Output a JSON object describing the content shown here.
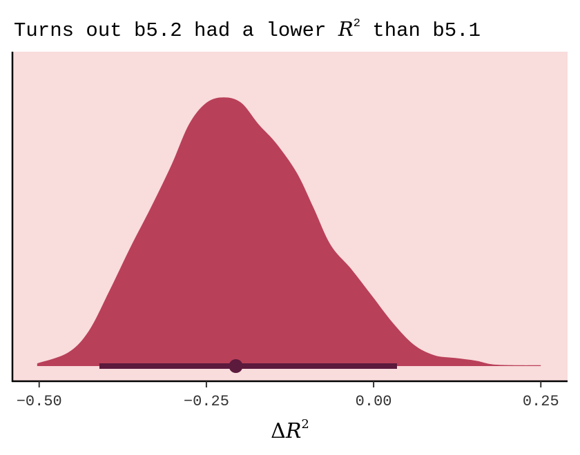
{
  "chart_data": {
    "type": "area",
    "title_parts": {
      "before": "Turns out b5.2 had a lower ",
      "math": "R",
      "sup": "2",
      "after": " than b5.1"
    },
    "xlabel": {
      "delta": "Δ",
      "math": "R",
      "sup": "2"
    },
    "ylabel": "",
    "xlim": [
      -0.54,
      0.29
    ],
    "ylim": [
      0,
      1.17
    ],
    "x_ticks": [
      -0.5,
      -0.25,
      0.0,
      0.25
    ],
    "x_tick_labels": [
      "−0.50",
      "−0.25",
      "0.00",
      "0.25"
    ],
    "y_axis_ticks": false,
    "grid": false,
    "density": {
      "x": [
        -0.503,
        -0.457,
        -0.426,
        -0.395,
        -0.364,
        -0.333,
        -0.302,
        -0.276,
        -0.25,
        -0.224,
        -0.198,
        -0.172,
        -0.146,
        -0.115,
        -0.09,
        -0.064,
        -0.033,
        -0.002,
        0.029,
        0.06,
        0.091,
        0.122,
        0.153,
        0.184,
        0.25
      ],
      "y": [
        0.01,
        0.05,
        0.13,
        0.28,
        0.44,
        0.59,
        0.75,
        0.9,
        0.98,
        1.0,
        0.98,
        0.9,
        0.83,
        0.72,
        0.59,
        0.45,
        0.36,
        0.26,
        0.16,
        0.08,
        0.04,
        0.03,
        0.02,
        0.005,
        0.003
      ]
    },
    "point_interval": {
      "point": -0.206,
      "lower": -0.41,
      "upper": 0.035
    },
    "colors": {
      "panel": "#f9dcdc",
      "density": "#b94059",
      "interval": "#5c1a3d",
      "axis": "#000000"
    }
  }
}
